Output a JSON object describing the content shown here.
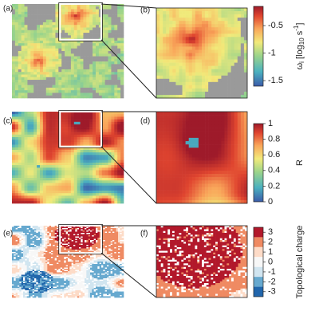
{
  "panels": [
    {
      "label": "(a)"
    },
    {
      "label": "(b)"
    },
    {
      "label": "(c)"
    },
    {
      "label": "(d)"
    },
    {
      "label": "(e)"
    },
    {
      "label": "(f)"
    }
  ],
  "colorbars": [
    {
      "label_parts": [
        "ω",
        "i",
        " [log",
        "10",
        " s",
        "-1",
        "]"
      ],
      "lim": [
        -1.6,
        -0.15
      ],
      "ticks": [
        -0.5,
        -1,
        -1.5
      ]
    },
    {
      "label_parts": [
        "R"
      ],
      "lim": [
        0,
        1
      ],
      "ticks": [
        0,
        0.2,
        0.4,
        0.6,
        0.8,
        1
      ]
    },
    {
      "label_parts": [
        "Topological charge"
      ],
      "lim": [
        -3.5,
        3.5
      ],
      "ticks": [
        3,
        2,
        1,
        0,
        -1,
        -2,
        -3
      ],
      "colors": [
        "#b2182b",
        "#ef8a62",
        "#fddbc7",
        "#f7f7f7",
        "#d1e5f0",
        "#67a9cf",
        "#2166ac"
      ]
    }
  ]
}
